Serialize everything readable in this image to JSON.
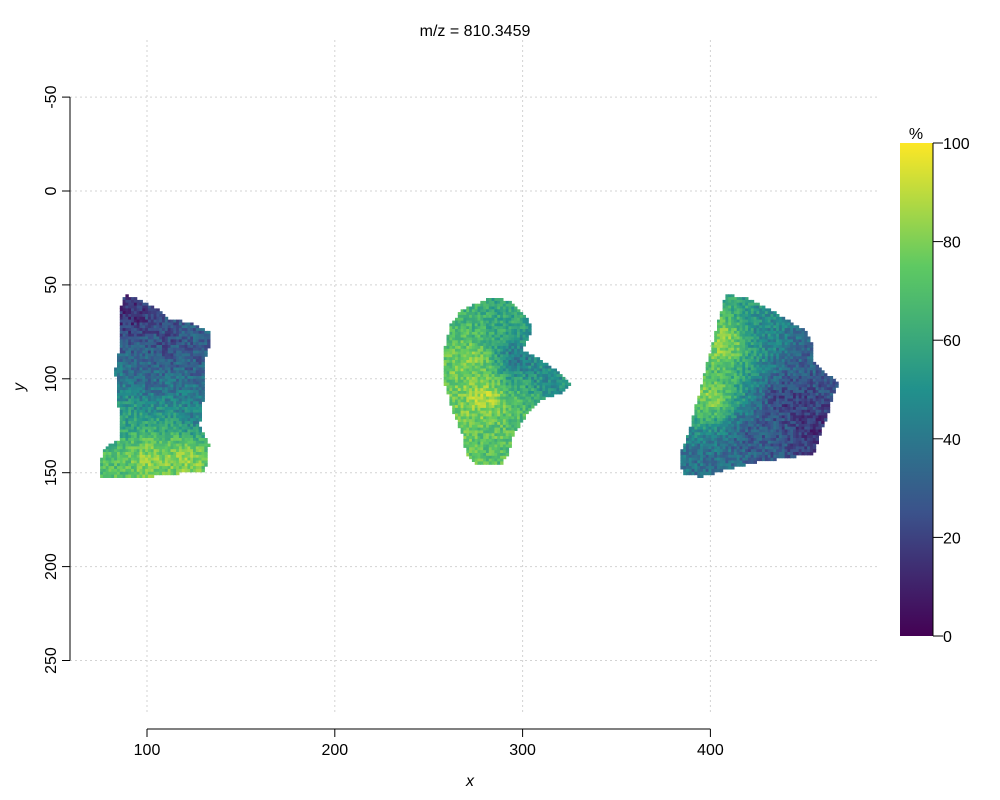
{
  "chart_data": {
    "type": "heatmap",
    "title": "m/z = 810.3459",
    "xlabel": "x",
    "ylabel": "y",
    "xlim": [
      60,
      480
    ],
    "ylim": [
      285,
      -80
    ],
    "x_ticks": [
      100,
      200,
      300,
      400
    ],
    "y_ticks": [
      -50,
      0,
      50,
      100,
      150,
      200,
      250
    ],
    "grid": true,
    "colorbar": {
      "label": "%",
      "min": 0,
      "max": 100,
      "ticks": [
        0,
        20,
        40,
        60,
        80,
        100
      ],
      "colormap": "viridis",
      "stops": [
        "#440154",
        "#3b528b",
        "#21918c",
        "#5ec962",
        "#fde725"
      ]
    },
    "regions": [
      {
        "outline": [
          [
            88,
            55
          ],
          [
            94,
            57
          ],
          [
            100,
            60
          ],
          [
            107,
            63
          ],
          [
            112,
            68
          ],
          [
            123,
            70
          ],
          [
            129,
            73
          ],
          [
            133,
            75
          ],
          [
            134,
            80
          ],
          [
            131,
            88
          ],
          [
            130,
            95
          ],
          [
            130,
            110
          ],
          [
            128,
            125
          ],
          [
            133,
            135
          ],
          [
            131,
            149
          ],
          [
            120,
            150
          ],
          [
            108,
            151
          ],
          [
            96,
            153
          ],
          [
            75,
            153
          ],
          [
            75,
            145
          ],
          [
            78,
            136
          ],
          [
            85,
            133
          ],
          [
            86,
            125
          ],
          [
            84,
            110
          ],
          [
            83,
            95
          ],
          [
            86,
            80
          ],
          [
            85,
            65
          ]
        ],
        "value_field": [
          {
            "x": 90,
            "y": 65,
            "v": 10
          },
          {
            "x": 110,
            "y": 80,
            "v": 22
          },
          {
            "x": 125,
            "y": 90,
            "v": 28
          },
          {
            "x": 100,
            "y": 100,
            "v": 32
          },
          {
            "x": 90,
            "y": 120,
            "v": 55
          },
          {
            "x": 100,
            "y": 140,
            "v": 88
          },
          {
            "x": 120,
            "y": 140,
            "v": 90
          },
          {
            "x": 80,
            "y": 148,
            "v": 72
          },
          {
            "x": 125,
            "y": 120,
            "v": 40
          }
        ],
        "base": 30
      },
      {
        "outline": [
          [
            275,
            60
          ],
          [
            283,
            57
          ],
          [
            292,
            58
          ],
          [
            298,
            63
          ],
          [
            303,
            68
          ],
          [
            305,
            73
          ],
          [
            303,
            78
          ],
          [
            300,
            85
          ],
          [
            310,
            90
          ],
          [
            320,
            97
          ],
          [
            325,
            103
          ],
          [
            320,
            108
          ],
          [
            312,
            110
          ],
          [
            305,
            115
          ],
          [
            300,
            122
          ],
          [
            295,
            130
          ],
          [
            292,
            140
          ],
          [
            288,
            146
          ],
          [
            275,
            146
          ],
          [
            270,
            140
          ],
          [
            268,
            130
          ],
          [
            262,
            115
          ],
          [
            258,
            100
          ],
          [
            258,
            85
          ],
          [
            262,
            70
          ],
          [
            268,
            63
          ]
        ],
        "value_field": [
          {
            "x": 280,
            "y": 110,
            "v": 95
          },
          {
            "x": 275,
            "y": 90,
            "v": 85
          },
          {
            "x": 290,
            "y": 75,
            "v": 62
          },
          {
            "x": 282,
            "y": 130,
            "v": 72
          },
          {
            "x": 312,
            "y": 100,
            "v": 45
          },
          {
            "x": 295,
            "y": 88,
            "v": 25
          },
          {
            "x": 300,
            "y": 115,
            "v": 70
          }
        ],
        "base": 65
      },
      {
        "outline": [
          [
            408,
            55
          ],
          [
            420,
            57
          ],
          [
            430,
            62
          ],
          [
            440,
            68
          ],
          [
            450,
            74
          ],
          [
            455,
            82
          ],
          [
            454,
            90
          ],
          [
            460,
            96
          ],
          [
            468,
            102
          ],
          [
            465,
            110
          ],
          [
            462,
            120
          ],
          [
            458,
            130
          ],
          [
            455,
            140
          ],
          [
            440,
            142
          ],
          [
            425,
            144
          ],
          [
            410,
            148
          ],
          [
            395,
            152
          ],
          [
            385,
            150
          ],
          [
            384,
            140
          ],
          [
            388,
            130
          ],
          [
            392,
            115
          ],
          [
            396,
            100
          ],
          [
            400,
            85
          ],
          [
            404,
            70
          ]
        ],
        "value_field": [
          {
            "x": 408,
            "y": 80,
            "v": 92
          },
          {
            "x": 400,
            "y": 110,
            "v": 88
          },
          {
            "x": 425,
            "y": 75,
            "v": 45
          },
          {
            "x": 440,
            "y": 110,
            "v": 15
          },
          {
            "x": 455,
            "y": 125,
            "v": 12
          },
          {
            "x": 420,
            "y": 130,
            "v": 25
          },
          {
            "x": 395,
            "y": 140,
            "v": 35
          },
          {
            "x": 450,
            "y": 85,
            "v": 30
          }
        ],
        "base": 25
      }
    ]
  }
}
